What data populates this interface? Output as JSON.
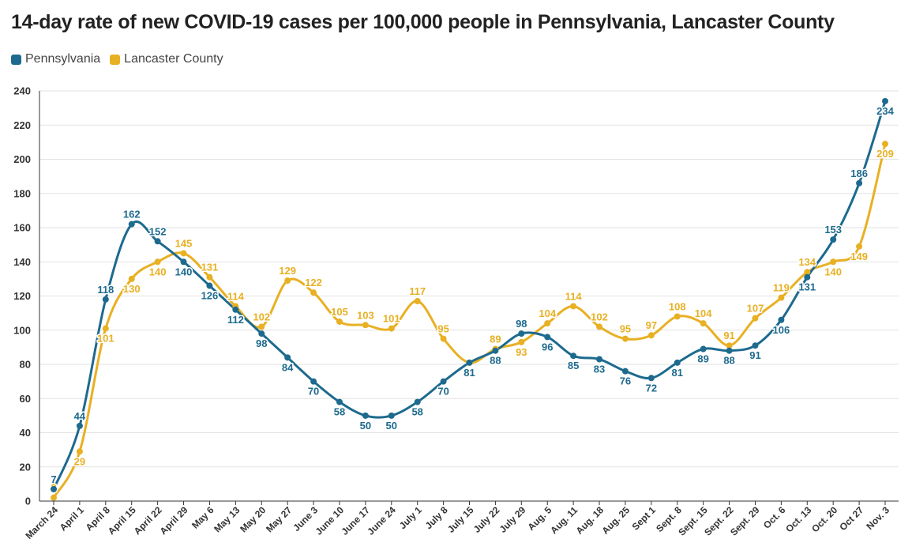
{
  "colors": {
    "pa": "#1d6a8e",
    "lc": "#e8b023",
    "grid": "#e2e2e2",
    "axis": "#333333"
  },
  "chart_data": {
    "type": "line",
    "title": "14-day rate of new COVID-19 cases per 100,000 people in Pennsylvania, Lancaster County",
    "xlabel": "",
    "ylabel": "",
    "ylim": [
      0,
      240
    ],
    "yticks": [
      0,
      20,
      40,
      60,
      80,
      100,
      120,
      140,
      160,
      180,
      200,
      220,
      240
    ],
    "grid": true,
    "legend_position": "top-left",
    "categories": [
      "March 24",
      "April 1",
      "April 8",
      "April 15",
      "April 22",
      "April 29",
      "May 6",
      "May 13",
      "May 20",
      "May 27",
      "June 3",
      "June 10",
      "June 17",
      "June 24",
      "July 1",
      "July 8",
      "July 15",
      "July 22",
      "July 29",
      "Aug. 5",
      "Aug. 11",
      "Aug. 18",
      "Aug. 25",
      "Sept 1",
      "Sept. 8",
      "Sept. 15",
      "Sept. 22",
      "Sept. 29",
      "Oct. 6",
      "Oct. 13",
      "Oct. 20",
      "Oct 27",
      "Nov. 3"
    ],
    "series": [
      {
        "name": "Pennsylvania",
        "key": "pa",
        "values": [
          7,
          44,
          118,
          162,
          152,
          140,
          126,
          112,
          98,
          84,
          70,
          58,
          50,
          50,
          58,
          70,
          81,
          88,
          98,
          96,
          85,
          83,
          76,
          72,
          81,
          89,
          88,
          91,
          106,
          131,
          153,
          186,
          234
        ]
      },
      {
        "name": "Lancaster County",
        "key": "lc",
        "values": [
          2,
          29,
          101,
          130,
          140,
          145,
          131,
          114,
          102,
          129,
          122,
          105,
          103,
          101,
          117,
          95,
          81,
          89,
          93,
          104,
          114,
          102,
          95,
          97,
          108,
          104,
          91,
          107,
          119,
          134,
          140,
          149,
          209
        ]
      }
    ]
  }
}
